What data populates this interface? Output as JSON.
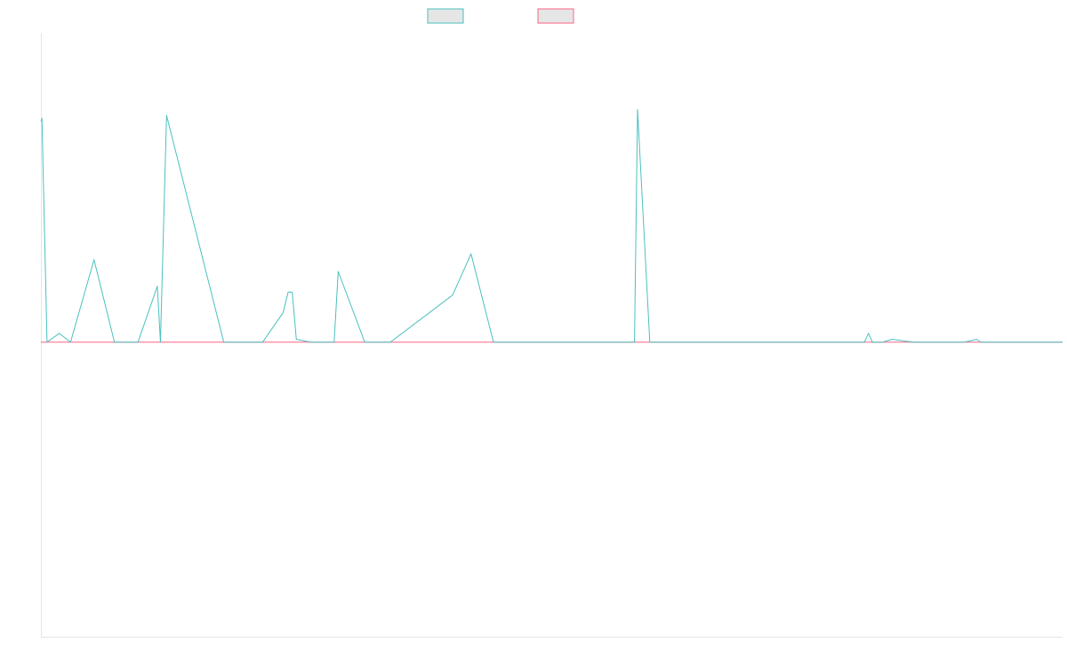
{
  "chart_data": {
    "type": "line",
    "legend": {
      "placement": "top-center",
      "entries": [
        "",
        ""
      ]
    },
    "grid": false,
    "colors": {
      "series_up": "#4bc0c0",
      "series_down": "#ff6384",
      "axis": "#e5e5e5"
    },
    "x": [
      0,
      0.1,
      0.6,
      1.8,
      2.9,
      5.2,
      7.2,
      8.4,
      8.9,
      9.5,
      11.4,
      11.7,
      12.3,
      17.9,
      20.3,
      21.7,
      23.7,
      24.2,
      24.6,
      25.0,
      26.4,
      27.5,
      28.7,
      29.1,
      31.7,
      32.9,
      34.2,
      40.3,
      42.1,
      44.3,
      48.4,
      52.7,
      52.9,
      53.4,
      58.1,
      58.4,
      59.6,
      63.2,
      68.7,
      69.1,
      70.3,
      75.9,
      76.3,
      80.6,
      81.0,
      81.4,
      82.4,
      83.3,
      85.4,
      87.7,
      90.4,
      91.6,
      92.0,
      92.3,
      93.6,
      95.6,
      97.1,
      98.2,
      100
    ],
    "series": [
      {
        "name": "",
        "values": [
          75,
          76,
          0,
          3,
          0,
          28,
          0,
          0,
          0,
          0,
          19,
          0,
          77,
          0,
          0,
          0,
          10,
          17,
          17,
          1,
          0,
          0,
          0,
          24,
          0,
          0,
          0,
          16,
          30,
          0,
          0,
          0,
          0,
          0,
          0,
          79,
          0,
          0,
          0,
          0,
          0,
          0,
          0,
          0,
          3,
          0,
          0,
          1,
          0,
          0,
          0,
          1,
          0,
          0,
          0,
          0,
          0,
          0,
          0
        ]
      },
      {
        "name": "",
        "values": [
          0,
          0,
          0,
          0,
          0,
          0,
          0,
          0,
          0,
          0,
          0,
          0,
          0,
          0,
          0,
          0,
          0,
          0,
          0,
          0,
          0,
          0,
          0,
          0,
          0,
          0,
          0,
          0,
          0,
          0,
          0,
          0,
          0,
          0,
          0,
          0,
          0,
          0,
          0,
          0,
          0,
          0,
          0,
          0,
          0,
          0,
          0,
          0,
          0,
          0,
          0,
          0,
          0,
          0,
          0,
          0,
          0,
          0,
          0
        ]
      }
    ],
    "xlim": [
      0,
      100
    ],
    "ylim": [
      -100,
      105
    ]
  }
}
